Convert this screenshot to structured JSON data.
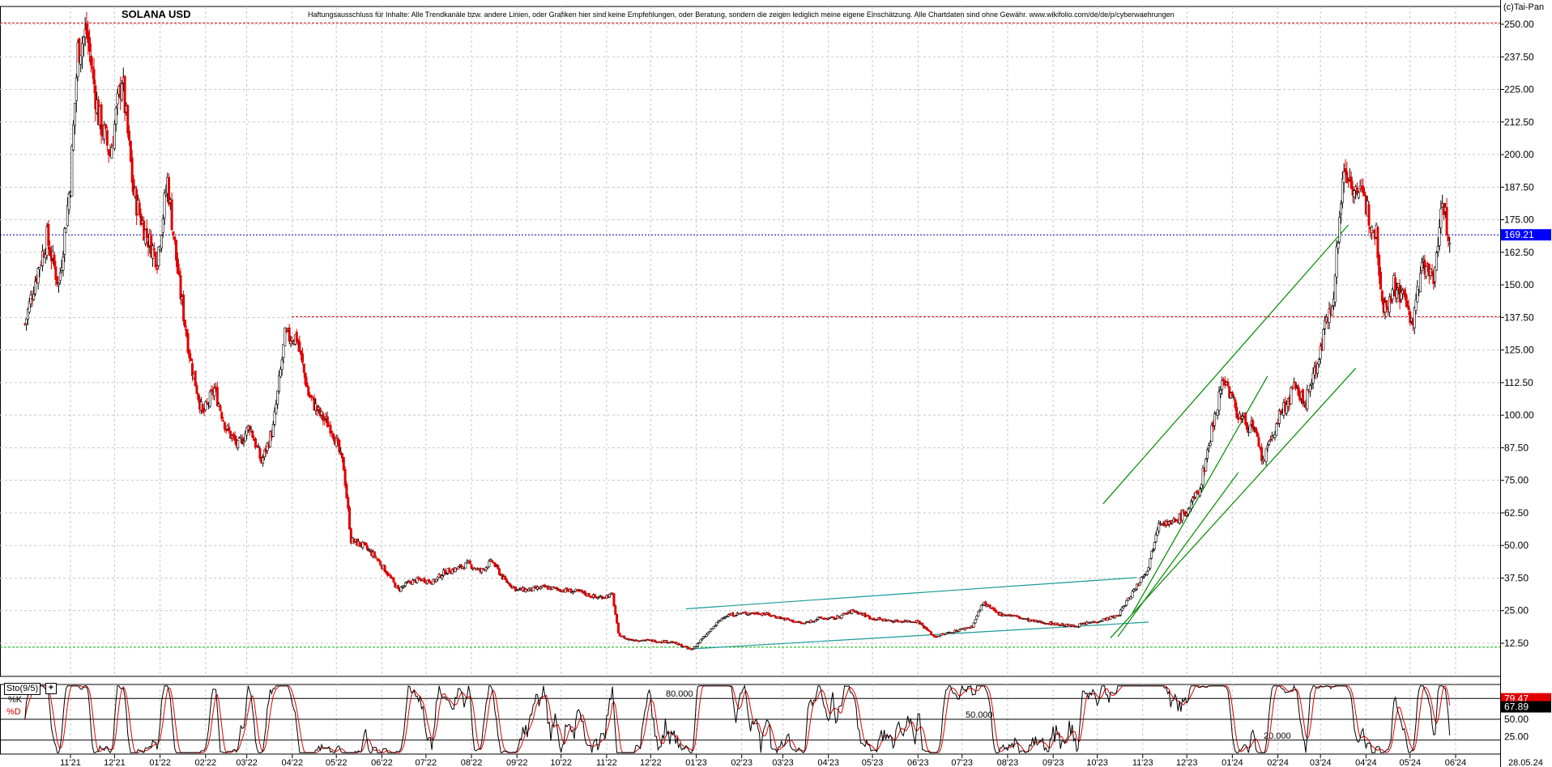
{
  "header": {
    "title": "SOLANA USD",
    "disclaimer": "Haftungsausschluss für Inhalte: Alle Trendkanäle bzw. andere Linien, oder Grafiken hier sind keine Empfehlungen, oder Beratung, sondern die zeigen lediglich meine eigene Einschätzung. Alle Chartdaten sind ohne Gewähr. www.wikifolio.com/de/de/p/cyberwaehrungen",
    "copyright": "(c)Tai-Pan"
  },
  "colors": {
    "up_candle": "#000000",
    "down_candle": "#e00000",
    "grid": "#c8c8c8",
    "resistance_line": "#e00000",
    "support_line": "#00b000",
    "channel_green": "#008800",
    "channel_teal": "#1a9a9a",
    "last_price_line": "#0000a0",
    "last_price_badge": "#0000ff",
    "stoch_k": "#000000",
    "stoch_d": "#e00000",
    "stoch_k_badge": "#000000",
    "stoch_d_badge": "#e00000"
  },
  "chart_data": [
    {
      "type": "candlestick",
      "title": "SOLANA USD",
      "y_ticks": [
        "250.00",
        "237.50",
        "225.00",
        "212.50",
        "200.00",
        "187.50",
        "175.00",
        "162.50",
        "150.00",
        "137.50",
        "125.00",
        "112.50",
        "100.00",
        "87.50",
        "75.00",
        "62.50",
        "50.00",
        "37.50",
        "25.00",
        "12.50"
      ],
      "ylim": [
        5,
        254
      ],
      "x_ticks": [
        "11'21",
        "12'21",
        "01'22",
        "02'22",
        "03'22",
        "04'22",
        "05'22",
        "06'22",
        "07'22",
        "08'22",
        "09'22",
        "10'22",
        "11'22",
        "12'22",
        "01'23",
        "02'23",
        "03'23",
        "04'23",
        "05'23",
        "06'23",
        "07'23",
        "08'23",
        "09'23",
        "10'23",
        "11'23",
        "12'23",
        "01'24",
        "02'24",
        "03'24",
        "04'24",
        "05'24",
        "06'24"
      ],
      "x_end_label": "28.05.24",
      "grid": true,
      "last_price": 169.21,
      "last_price_label": "169.21",
      "horizontal_levels": [
        250.5,
        137.8,
        11.0
      ],
      "price_path": [
        [
          "2021-10-01",
          135
        ],
        [
          "2021-10-08",
          152
        ],
        [
          "2021-10-16",
          168
        ],
        [
          "2021-10-24",
          150
        ],
        [
          "2021-11-01",
          190
        ],
        [
          "2021-11-06",
          240
        ],
        [
          "2021-11-12",
          247
        ],
        [
          "2021-11-20",
          215
        ],
        [
          "2021-11-28",
          200
        ],
        [
          "2021-12-06",
          230
        ],
        [
          "2021-12-14",
          185
        ],
        [
          "2021-12-22",
          170
        ],
        [
          "2021-12-30",
          160
        ],
        [
          "2022-01-06",
          190
        ],
        [
          "2022-01-14",
          150
        ],
        [
          "2022-01-22",
          120
        ],
        [
          "2022-01-30",
          100
        ],
        [
          "2022-02-07",
          110
        ],
        [
          "2022-02-15",
          95
        ],
        [
          "2022-02-23",
          88
        ],
        [
          "2022-03-03",
          96
        ],
        [
          "2022-03-11",
          82
        ],
        [
          "2022-03-19",
          95
        ],
        [
          "2022-03-27",
          130
        ],
        [
          "2022-04-04",
          130
        ],
        [
          "2022-04-12",
          108
        ],
        [
          "2022-04-20",
          100
        ],
        [
          "2022-04-28",
          95
        ],
        [
          "2022-05-06",
          80
        ],
        [
          "2022-05-11",
          52
        ],
        [
          "2022-05-19",
          50
        ],
        [
          "2022-05-27",
          46
        ],
        [
          "2022-06-04",
          40
        ],
        [
          "2022-06-12",
          33
        ],
        [
          "2022-06-20",
          36
        ],
        [
          "2022-06-28",
          37
        ],
        [
          "2022-07-06",
          36
        ],
        [
          "2022-07-14",
          40
        ],
        [
          "2022-07-22",
          41
        ],
        [
          "2022-07-30",
          43
        ],
        [
          "2022-08-07",
          40
        ],
        [
          "2022-08-15",
          44
        ],
        [
          "2022-08-23",
          37
        ],
        [
          "2022-09-01",
          33
        ],
        [
          "2022-09-10",
          33
        ],
        [
          "2022-09-20",
          34
        ],
        [
          "2022-10-01",
          33
        ],
        [
          "2022-10-15",
          32
        ],
        [
          "2022-10-25",
          30
        ],
        [
          "2022-11-05",
          31
        ],
        [
          "2022-11-09",
          16
        ],
        [
          "2022-11-15",
          14
        ],
        [
          "2022-12-01",
          13.5
        ],
        [
          "2022-12-15",
          13
        ],
        [
          "2022-12-29",
          10
        ],
        [
          "2023-01-10",
          17
        ],
        [
          "2023-01-20",
          23
        ],
        [
          "2023-02-01",
          24
        ],
        [
          "2023-02-15",
          24
        ],
        [
          "2023-03-01",
          22
        ],
        [
          "2023-03-15",
          20
        ],
        [
          "2023-03-25",
          22
        ],
        [
          "2023-04-05",
          22
        ],
        [
          "2023-04-18",
          25
        ],
        [
          "2023-05-01",
          22
        ],
        [
          "2023-05-15",
          21
        ],
        [
          "2023-06-01",
          21
        ],
        [
          "2023-06-12",
          15
        ],
        [
          "2023-06-25",
          17
        ],
        [
          "2023-07-08",
          19
        ],
        [
          "2023-07-15",
          28
        ],
        [
          "2023-07-25",
          24
        ],
        [
          "2023-08-05",
          23
        ],
        [
          "2023-08-17",
          21
        ],
        [
          "2023-09-01",
          20
        ],
        [
          "2023-09-15",
          19
        ],
        [
          "2023-10-01",
          21
        ],
        [
          "2023-10-15",
          23
        ],
        [
          "2023-10-25",
          32
        ],
        [
          "2023-11-05",
          42
        ],
        [
          "2023-11-12",
          60
        ],
        [
          "2023-11-20",
          58
        ],
        [
          "2023-12-01",
          63
        ],
        [
          "2023-12-10",
          72
        ],
        [
          "2023-12-20",
          100
        ],
        [
          "2023-12-26",
          115
        ],
        [
          "2024-01-05",
          100
        ],
        [
          "2024-01-15",
          95
        ],
        [
          "2024-01-22",
          82
        ],
        [
          "2024-02-01",
          98
        ],
        [
          "2024-02-12",
          110
        ],
        [
          "2024-02-20",
          105
        ],
        [
          "2024-03-01",
          125
        ],
        [
          "2024-03-10",
          148
        ],
        [
          "2024-03-17",
          195
        ],
        [
          "2024-03-25",
          187
        ],
        [
          "2024-04-01",
          180
        ],
        [
          "2024-04-08",
          170
        ],
        [
          "2024-04-13",
          140
        ],
        [
          "2024-04-20",
          150
        ],
        [
          "2024-04-27",
          145
        ],
        [
          "2024-05-03",
          135
        ],
        [
          "2024-05-10",
          160
        ],
        [
          "2024-05-17",
          150
        ],
        [
          "2024-05-22",
          181
        ],
        [
          "2024-05-28",
          169
        ]
      ],
      "channels": [
        {
          "color": "channel_teal",
          "from": [
            "2022-12-25",
            25.7
          ],
          "to": [
            "2023-10-28",
            37.7
          ]
        },
        {
          "color": "channel_teal",
          "from": [
            "2022-12-25",
            10.2
          ],
          "to": [
            "2023-11-05",
            20.6
          ]
        },
        {
          "color": "channel_green",
          "from": [
            "2023-10-05",
            66
          ],
          "to": [
            "2024-03-20",
            173
          ]
        },
        {
          "color": "channel_green",
          "from": [
            "2023-10-10",
            14.5
          ],
          "to": [
            "2024-03-25",
            118
          ]
        },
        {
          "color": "channel_green",
          "from": [
            "2023-10-15",
            15
          ],
          "to": [
            "2024-01-05",
            78
          ]
        },
        {
          "color": "channel_green",
          "from": [
            "2023-10-25",
            24
          ],
          "to": [
            "2024-01-25",
            115
          ]
        }
      ]
    },
    {
      "type": "line",
      "title": "Sto(9/5)",
      "series": [
        {
          "name": "%K",
          "color": "stoch_k",
          "last": 67.89,
          "last_label": "67.89"
        },
        {
          "name": "%D",
          "color": "stoch_d",
          "last": 79.47,
          "last_label": "79.47"
        }
      ],
      "y_ticks": [
        "75.00",
        "50.00",
        "25.00"
      ],
      "levels": [
        {
          "value": 80,
          "label": "80.000"
        },
        {
          "value": 50,
          "label": "50.000"
        },
        {
          "value": 20,
          "label": "20.000"
        }
      ],
      "ylim": [
        0,
        100
      ]
    }
  ],
  "stoch_panel": {
    "box_label": "Sto(9/5)",
    "button_label": "+",
    "k_label": "%K",
    "d_label": "%D"
  }
}
